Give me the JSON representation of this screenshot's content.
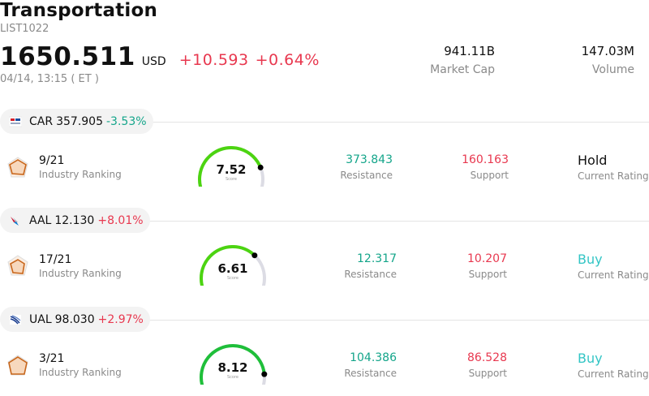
{
  "header": {
    "title": "Transportation",
    "code": "LIST1022",
    "price": "1650.511",
    "currency": "USD",
    "change": "+10.593",
    "change_pct": "+0.64%",
    "time": "04/14, 13:15  ( ET )",
    "market_cap_value": "941.11B",
    "market_cap_label": "Market Cap",
    "volume_value": "147.03M",
    "volume_label": "Volume"
  },
  "colors": {
    "up": "#e8384f",
    "down": "#14a58a",
    "buy": "#33c5c5",
    "gauge_track": "#dcdce4"
  },
  "stocks": [
    {
      "symbol": "CAR",
      "price": "357.905",
      "change": "-3.53%",
      "logo": "avis-budget-logo",
      "rank_value": "9/21",
      "rank_label": "Industry Ranking",
      "score": "7.52",
      "score_value": 7.52,
      "score_label": "Score",
      "gauge_color": "#4cd411",
      "resistance": "373.843",
      "resistance_label": "Resistance",
      "support": "160.163",
      "support_label": "Support",
      "rating": "Hold",
      "rating_label": "Current Rating"
    },
    {
      "symbol": "AAL",
      "price": "12.130",
      "change": "+8.01%",
      "logo": "american-airlines-logo",
      "rank_value": "17/21",
      "rank_label": "Industry Ranking",
      "score": "6.61",
      "score_value": 6.61,
      "score_label": "Score",
      "gauge_color": "#4cd411",
      "resistance": "12.317",
      "resistance_label": "Resistance",
      "support": "10.207",
      "support_label": "Support",
      "rating": "Buy",
      "rating_label": "Current Rating"
    },
    {
      "symbol": "UAL",
      "price": "98.030",
      "change": "+2.97%",
      "logo": "united-airlines-logo",
      "rank_value": "3/21",
      "rank_label": "Industry Ranking",
      "score": "8.12",
      "score_value": 8.12,
      "score_label": "Score",
      "gauge_color": "#1fbf3a",
      "resistance": "104.386",
      "resistance_label": "Resistance",
      "support": "86.528",
      "support_label": "Support",
      "rating": "Buy",
      "rating_label": "Current Rating"
    }
  ]
}
